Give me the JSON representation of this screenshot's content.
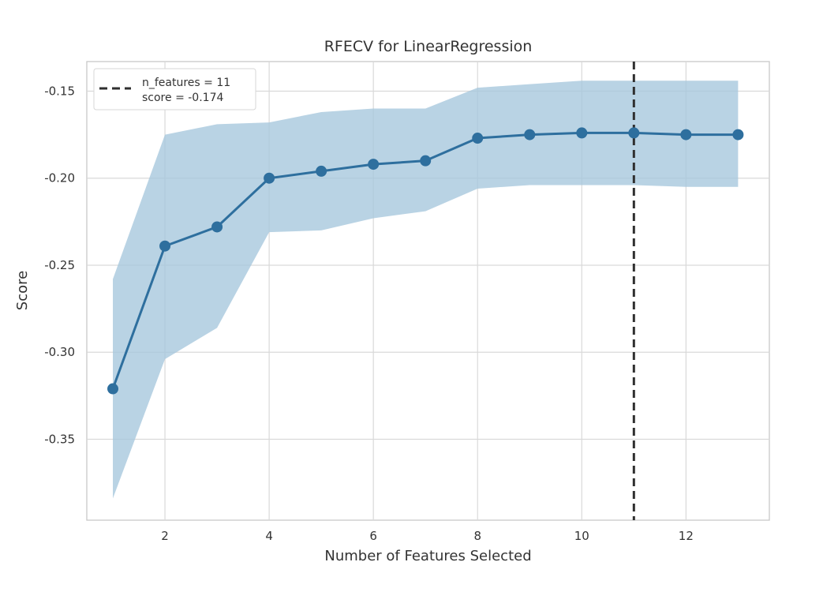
{
  "chart_data": {
    "type": "line",
    "title": "RFECV for LinearRegression",
    "xlabel": "Number of Features Selected",
    "ylabel": "Score",
    "xlim": [
      0.5,
      13.6
    ],
    "ylim": [
      -0.3965,
      -0.133
    ],
    "x_ticks": [
      2,
      4,
      6,
      8,
      10,
      12
    ],
    "y_ticks": [
      -0.15,
      -0.2,
      -0.25,
      -0.3,
      -0.35
    ],
    "x_tick_labels": [
      "2",
      "4",
      "6",
      "8",
      "10",
      "12"
    ],
    "y_tick_labels": [
      "-0.15",
      "-0.20",
      "-0.25",
      "-0.30",
      "-0.35"
    ],
    "grid": true,
    "legend_position": "top-left",
    "series": [
      {
        "x": [
          1,
          2,
          3,
          4,
          5,
          6,
          7,
          8,
          9,
          10,
          11,
          12,
          13
        ],
        "values": [
          -0.321,
          -0.239,
          -0.228,
          -0.2,
          -0.196,
          -0.192,
          -0.19,
          -0.177,
          -0.175,
          -0.174,
          -0.174,
          -0.175,
          -0.175
        ],
        "upper": [
          -0.258,
          -0.175,
          -0.169,
          -0.168,
          -0.162,
          -0.16,
          -0.16,
          -0.148,
          -0.146,
          -0.144,
          -0.144,
          -0.144,
          -0.144
        ],
        "lower": [
          -0.384,
          -0.304,
          -0.286,
          -0.231,
          -0.23,
          -0.223,
          -0.219,
          -0.206,
          -0.204,
          -0.204,
          -0.204,
          -0.205,
          -0.205
        ],
        "color": "#2e6f9e",
        "band_color": "#a5c7dc"
      }
    ],
    "reference_line": {
      "x": 11,
      "color": "#2f2f2f",
      "style": "dashed"
    },
    "legend": {
      "lines": [
        "n_features = 11",
        "score = -0.174"
      ]
    }
  }
}
